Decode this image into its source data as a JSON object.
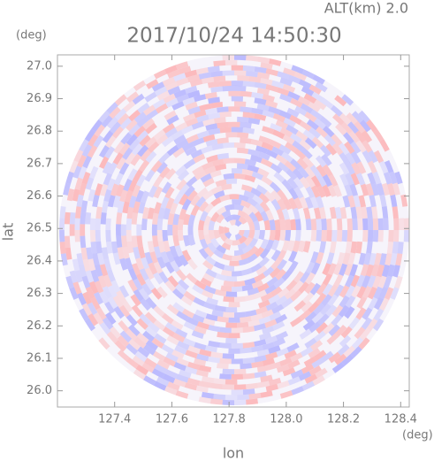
{
  "chart_data": {
    "type": "radar-ppi",
    "title": "2017/10/24 14:50:30",
    "annotation": "ALT(km) 2.0",
    "x_label": "lon",
    "y_label": "lat",
    "x_unit": "(deg)",
    "y_unit": "(deg)",
    "xlim": [
      127.2,
      128.43
    ],
    "ylim": [
      25.95,
      27.035
    ],
    "xticks": [
      127.4,
      127.6,
      127.8,
      {
        "value": 128,
        "label": "128.0"
      },
      128.2,
      128.4
    ],
    "yticks": [
      {
        "value": 26,
        "label": "26.0"
      },
      26.1,
      26.2,
      26.3,
      26.4,
      26.5,
      26.6,
      26.7,
      26.8,
      26.9,
      {
        "value": 27,
        "label": "27.0"
      }
    ],
    "colors": [
      "#ff9a9a",
      "#9a9aff"
    ]
  }
}
